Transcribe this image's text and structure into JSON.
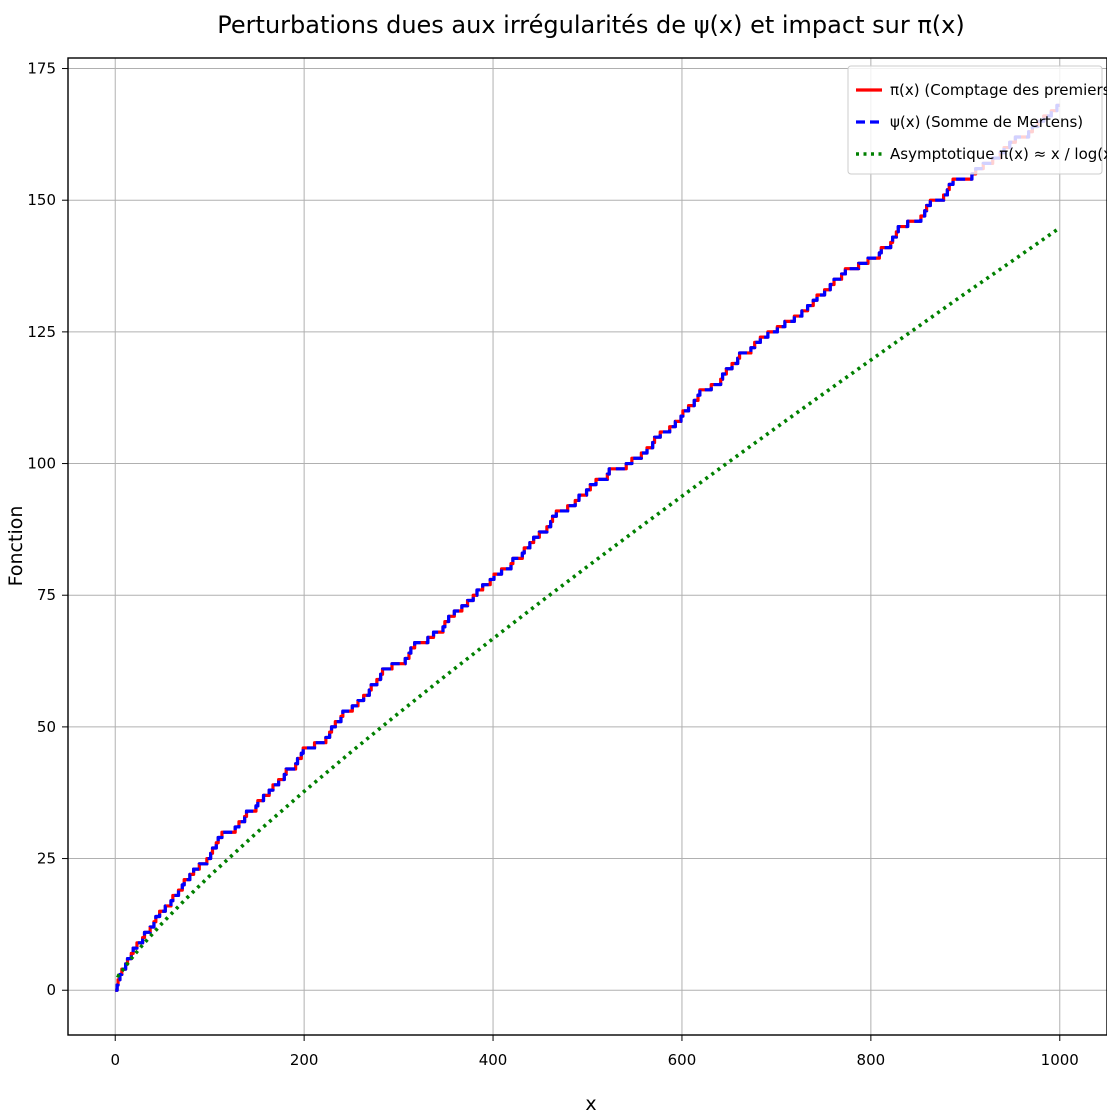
{
  "chart_data": {
    "type": "line",
    "title": "Perturbations dues aux irrégularités de ψ(x) et impact sur π(x)",
    "xlabel": "x",
    "ylabel": "Fonction",
    "xlim": [
      -50,
      1050
    ],
    "ylim": [
      -8.5,
      177
    ],
    "x_ticks": [
      0,
      200,
      400,
      600,
      800,
      1000
    ],
    "y_ticks": [
      0,
      25,
      50,
      75,
      100,
      125,
      150,
      175
    ],
    "grid": true,
    "legend_position": "top-right",
    "series": [
      {
        "name": "π(x) (Comptage des premiers)",
        "color": "#ff0000",
        "style": "solid",
        "x": [
          0,
          2,
          3,
          5,
          7,
          11,
          13,
          17,
          19,
          23,
          29,
          31,
          37,
          41,
          43,
          47,
          53,
          59,
          61,
          67,
          71,
          73,
          79,
          83,
          89,
          97,
          101,
          103,
          107,
          109,
          113,
          127,
          131,
          137,
          139,
          149,
          151,
          157,
          163,
          167,
          173,
          179,
          181,
          191,
          193,
          197,
          199,
          211,
          223,
          227,
          229,
          233,
          239,
          241,
          251,
          257,
          263,
          269,
          271,
          277,
          281,
          283,
          293,
          307,
          311,
          313,
          317,
          331,
          337,
          347,
          349,
          353,
          359,
          367,
          373,
          379,
          383,
          389,
          397,
          401,
          409,
          419,
          421,
          431,
          433,
          439,
          443,
          449,
          457,
          461,
          463,
          467,
          479,
          487,
          491,
          499,
          503,
          509,
          521,
          523,
          541,
          547,
          557,
          563,
          569,
          571,
          577,
          587,
          593,
          599,
          601,
          607,
          613,
          617,
          619,
          631,
          641,
          643,
          647,
          653,
          659,
          661,
          673,
          677,
          683,
          691,
          701,
          709,
          719,
          727,
          733,
          739,
          743,
          751,
          757,
          761,
          769,
          773,
          787,
          797,
          809,
          811,
          821,
          823,
          827,
          829,
          839,
          853,
          857,
          859,
          863,
          877,
          881,
          883,
          887,
          907,
          911,
          919,
          929,
          937,
          941,
          947,
          953,
          967,
          971,
          977,
          983,
          991,
          997,
          1000
        ],
        "y": [
          0,
          1,
          2,
          3,
          4,
          5,
          6,
          7,
          8,
          9,
          10,
          11,
          12,
          13,
          14,
          15,
          16,
          17,
          18,
          19,
          20,
          21,
          22,
          23,
          24,
          25,
          26,
          27,
          28,
          29,
          30,
          31,
          32,
          33,
          34,
          35,
          36,
          37,
          38,
          39,
          40,
          41,
          42,
          43,
          44,
          45,
          46,
          47,
          48,
          49,
          50,
          51,
          52,
          53,
          54,
          55,
          56,
          57,
          58,
          59,
          60,
          61,
          62,
          63,
          64,
          65,
          66,
          67,
          68,
          69,
          70,
          71,
          72,
          73,
          74,
          75,
          76,
          77,
          78,
          79,
          80,
          81,
          82,
          83,
          84,
          85,
          86,
          87,
          88,
          89,
          90,
          91,
          92,
          93,
          94,
          95,
          96,
          97,
          98,
          99,
          100,
          101,
          102,
          103,
          104,
          105,
          106,
          107,
          108,
          109,
          110,
          111,
          112,
          113,
          114,
          115,
          116,
          117,
          118,
          119,
          120,
          121,
          122,
          123,
          124,
          125,
          126,
          127,
          128,
          129,
          130,
          131,
          132,
          133,
          134,
          135,
          136,
          137,
          138,
          139,
          140,
          141,
          142,
          143,
          144,
          145,
          146,
          147,
          148,
          149,
          150,
          151,
          152,
          153,
          154,
          155,
          156,
          157,
          158,
          159,
          160,
          161,
          162,
          163,
          164,
          165,
          166,
          167,
          168,
          168
        ],
        "step": true
      },
      {
        "name": "ψ(x) (Somme de Mertens)",
        "color": "#0000ff",
        "style": "dashed",
        "same_as": "π(x) (Comptage des premiers)"
      },
      {
        "name": "Asymptotique π(x) ≈ x / log(x)",
        "color": "#008000",
        "style": "dotted",
        "x": [
          2,
          3,
          5,
          10,
          20,
          30,
          50,
          75,
          100,
          150,
          200,
          250,
          300,
          350,
          400,
          450,
          500,
          550,
          600,
          650,
          700,
          750,
          800,
          850,
          900,
          950,
          1000
        ],
        "y": [
          2.89,
          2.73,
          3.11,
          4.34,
          6.68,
          8.82,
          12.78,
          17.37,
          21.71,
          29.94,
          37.75,
          45.28,
          52.6,
          59.75,
          66.76,
          73.67,
          80.46,
          87.17,
          93.8,
          100.36,
          106.85,
          113.28,
          119.66,
          125.98,
          132.31,
          138.5,
          144.76
        ]
      }
    ]
  }
}
